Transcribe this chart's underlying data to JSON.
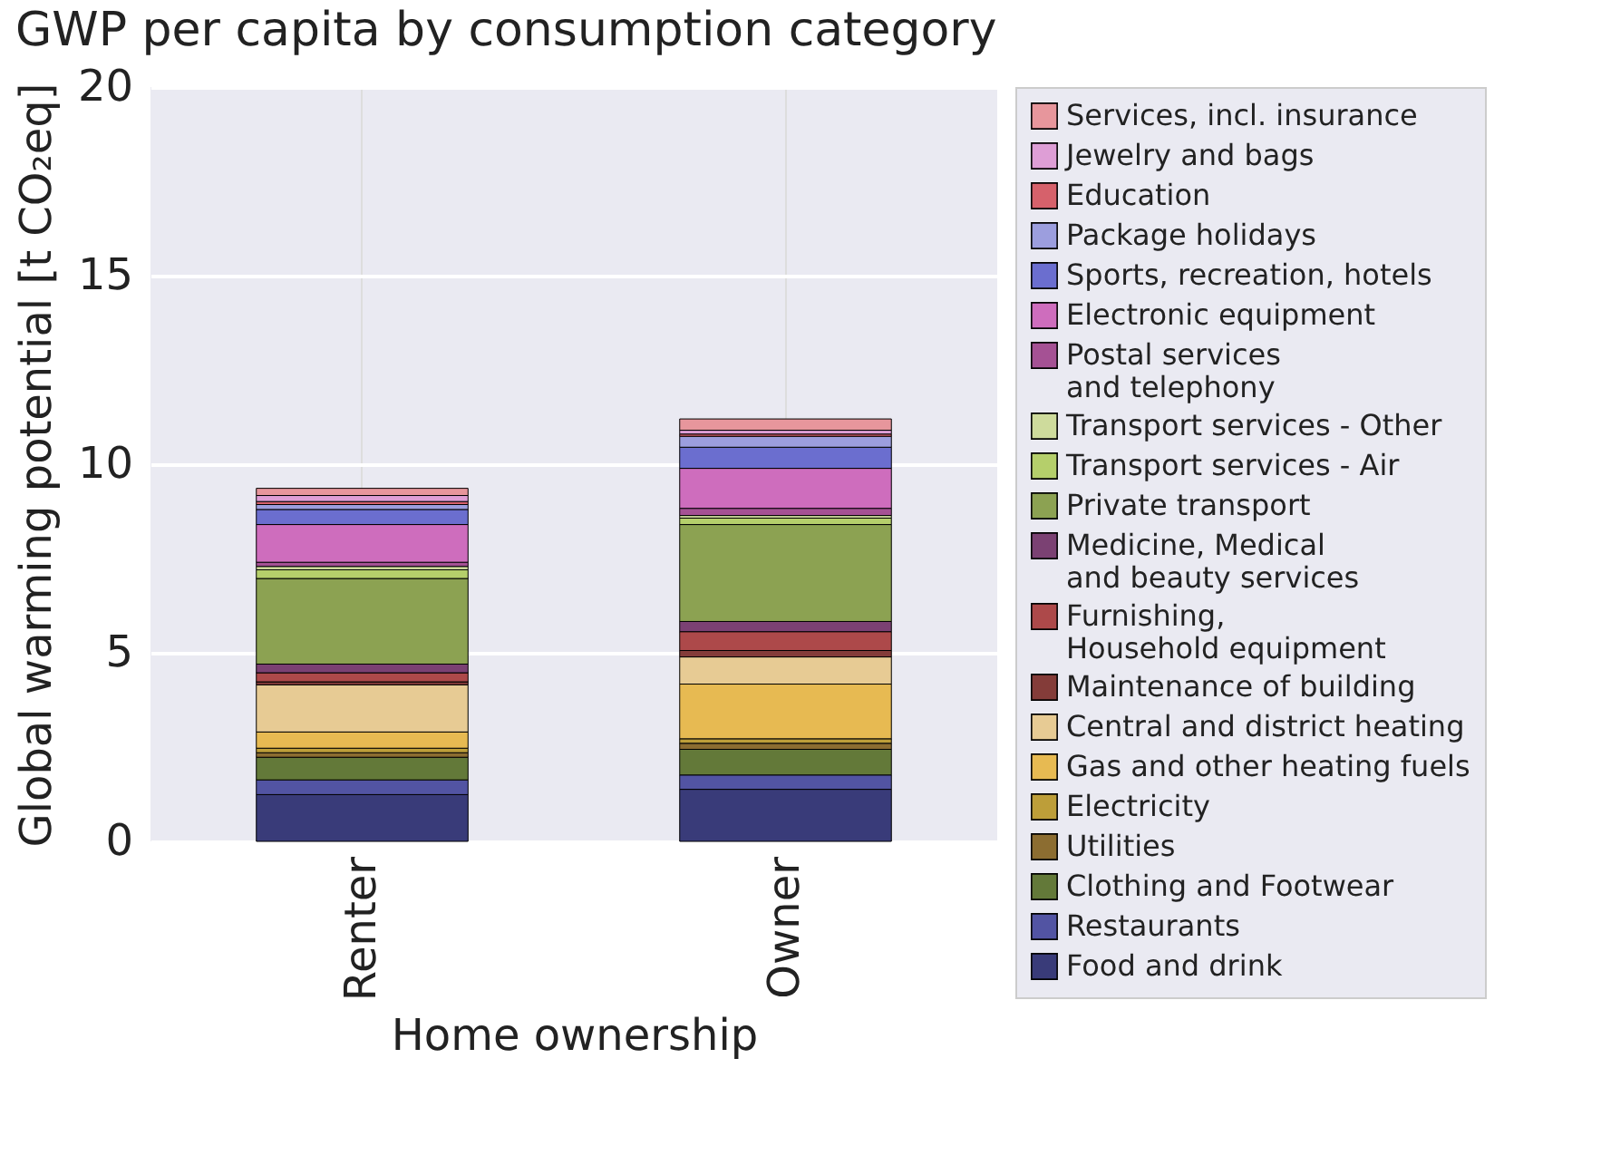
{
  "chart_data": {
    "type": "bar",
    "title": "GWP per capita by consumption category",
    "xlabel": "Home ownership",
    "ylabel": "Global warming potential [t CO₂eq]",
    "categories": [
      "Renter",
      "Owner"
    ],
    "stacked": true,
    "ylim": [
      0,
      20
    ],
    "yticks": [
      0,
      5,
      10,
      15,
      20
    ],
    "grid": true,
    "legend": "right",
    "series": [
      {
        "name": "Food and drink",
        "color": "#393b79",
        "values": [
          1.24,
          1.38
        ]
      },
      {
        "name": "Restaurants",
        "color": "#5254a3",
        "values": [
          0.39,
          0.38
        ]
      },
      {
        "name": "Clothing and Footwear",
        "color": "#637939",
        "values": [
          0.6,
          0.68
        ]
      },
      {
        "name": "Utilities",
        "color": "#8c6d31",
        "values": [
          0.12,
          0.16
        ]
      },
      {
        "name": "Electricity",
        "color": "#bd9e39",
        "values": [
          0.12,
          0.12
        ]
      },
      {
        "name": "Gas and other heating fuels",
        "color": "#e7ba52",
        "values": [
          0.43,
          1.45
        ]
      },
      {
        "name": "Central and district heating",
        "color": "#e7cb94",
        "values": [
          1.25,
          0.72
        ]
      },
      {
        "name": "Maintenance of building",
        "color": "#843c39",
        "values": [
          0.08,
          0.17
        ]
      },
      {
        "name": "Furnishing,\nHousehold equipment",
        "color": "#ad494a",
        "values": [
          0.24,
          0.5
        ]
      },
      {
        "name": "Medicine, Medical\nand beauty services",
        "color": "#7b4173",
        "values": [
          0.23,
          0.27
        ]
      },
      {
        "name": "Private transport",
        "color": "#8ca252",
        "values": [
          2.27,
          2.57
        ]
      },
      {
        "name": "Transport services - Air",
        "color": "#b5cf6b",
        "values": [
          0.23,
          0.17
        ]
      },
      {
        "name": "Transport services - Other",
        "color": "#cedb9c",
        "values": [
          0.09,
          0.07
        ]
      },
      {
        "name": "Postal services\nand telephony",
        "color": "#a55194",
        "values": [
          0.11,
          0.19
        ]
      },
      {
        "name": "Electronic equipment",
        "color": "#ce6dbd",
        "values": [
          1.0,
          1.06
        ]
      },
      {
        "name": "Sports, recreation, hotels",
        "color": "#6b6ecf",
        "values": [
          0.4,
          0.56
        ]
      },
      {
        "name": "Package holidays",
        "color": "#9c9ede",
        "values": [
          0.13,
          0.29
        ]
      },
      {
        "name": "Education",
        "color": "#d6616b",
        "values": [
          0.08,
          0.06
        ]
      },
      {
        "name": "Jewelry and bags",
        "color": "#de9ed6",
        "values": [
          0.16,
          0.1
        ]
      },
      {
        "name": "Services, incl. insurance",
        "color": "#e7969c",
        "values": [
          0.19,
          0.3
        ]
      }
    ]
  }
}
